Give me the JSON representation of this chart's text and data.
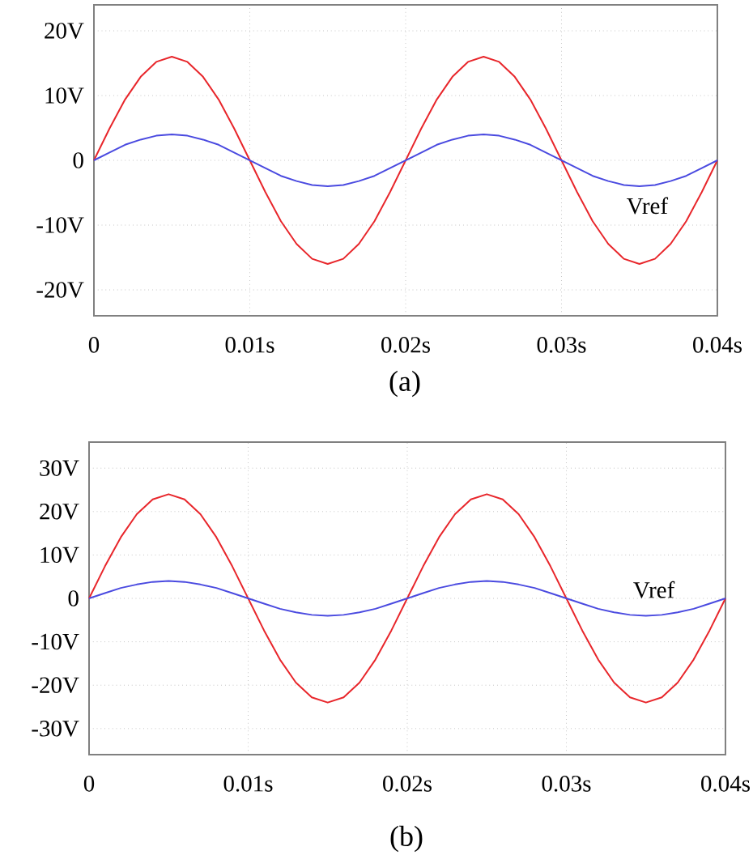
{
  "chart_data": [
    {
      "type": "line",
      "annotations": [
        "(a)"
      ],
      "x": [
        0,
        0.001,
        0.002,
        0.003,
        0.004,
        0.005,
        0.006,
        0.007,
        0.008,
        0.009,
        0.01,
        0.011,
        0.012,
        0.013,
        0.014,
        0.015,
        0.016,
        0.017,
        0.018,
        0.019,
        0.02,
        0.021,
        0.022,
        0.023,
        0.024,
        0.025,
        0.026,
        0.027,
        0.028,
        0.029,
        0.03,
        0.031,
        0.032,
        0.033,
        0.034,
        0.035,
        0.036,
        0.037,
        0.038,
        0.039,
        0.04
      ],
      "series": [
        {
          "color": "#e8262b",
          "values": [
            0,
            4.9,
            9.4,
            12.9,
            15.2,
            16,
            15.2,
            12.9,
            9.4,
            4.9,
            0,
            -4.9,
            -9.4,
            -12.9,
            -15.2,
            -16,
            -15.2,
            -12.9,
            -9.4,
            -4.9,
            0,
            4.9,
            9.4,
            12.9,
            15.2,
            16,
            15.2,
            12.9,
            9.4,
            4.9,
            0,
            -4.9,
            -9.4,
            -12.9,
            -15.2,
            -16,
            -15.2,
            -12.9,
            -9.4,
            -4.9,
            0
          ]
        },
        {
          "name": "Vref",
          "color": "#4a4ae0",
          "values": [
            0,
            1.2,
            2.4,
            3.2,
            3.8,
            4,
            3.8,
            3.2,
            2.4,
            1.2,
            0,
            -1.2,
            -2.4,
            -3.2,
            -3.8,
            -4,
            -3.8,
            -3.2,
            -2.4,
            -1.2,
            0,
            1.2,
            2.4,
            3.2,
            3.8,
            4,
            3.8,
            3.2,
            2.4,
            1.2,
            0,
            -1.2,
            -2.4,
            -3.2,
            -3.8,
            -4,
            -3.8,
            -3.2,
            -2.4,
            -1.2,
            0
          ]
        }
      ],
      "xlim": [
        0,
        0.04
      ],
      "ylim": [
        -24,
        24
      ],
      "xticks": [
        0,
        {
          "value": 0.01,
          "label": "0.01s"
        },
        {
          "value": 0.02,
          "label": "0.02s"
        },
        {
          "value": 0.03,
          "label": "0.03s"
        },
        {
          "value": 0.04,
          "label": "0.04s"
        }
      ],
      "yticks": [
        {
          "value": -20,
          "label": "-20V"
        },
        {
          "value": -10,
          "label": "-10V"
        },
        0,
        {
          "value": 10,
          "label": "10V"
        },
        {
          "value": 20,
          "label": "20V"
        }
      ],
      "grid": true
    },
    {
      "type": "line",
      "annotations": [
        "(b)"
      ],
      "x": [
        0,
        0.001,
        0.002,
        0.003,
        0.004,
        0.005,
        0.006,
        0.007,
        0.008,
        0.009,
        0.01,
        0.011,
        0.012,
        0.013,
        0.014,
        0.015,
        0.016,
        0.017,
        0.018,
        0.019,
        0.02,
        0.021,
        0.022,
        0.023,
        0.024,
        0.025,
        0.026,
        0.027,
        0.028,
        0.029,
        0.03,
        0.031,
        0.032,
        0.033,
        0.034,
        0.035,
        0.036,
        0.037,
        0.038,
        0.039,
        0.04
      ],
      "series": [
        {
          "color": "#e8262b",
          "values": [
            0,
            7.4,
            14.1,
            19.4,
            22.8,
            24,
            22.8,
            19.4,
            14.1,
            7.4,
            0,
            -7.4,
            -14.1,
            -19.4,
            -22.8,
            -24,
            -22.8,
            -19.4,
            -14.1,
            -7.4,
            0,
            7.4,
            14.1,
            19.4,
            22.8,
            24,
            22.8,
            19.4,
            14.1,
            7.4,
            0,
            -7.4,
            -14.1,
            -19.4,
            -22.8,
            -24,
            -22.8,
            -19.4,
            -14.1,
            -7.4,
            0
          ]
        },
        {
          "name": "Vref",
          "color": "#4a4ae0",
          "values": [
            0,
            1.2,
            2.4,
            3.2,
            3.8,
            4,
            3.8,
            3.2,
            2.4,
            1.2,
            0,
            -1.2,
            -2.4,
            -3.2,
            -3.8,
            -4,
            -3.8,
            -3.2,
            -2.4,
            -1.2,
            0,
            1.2,
            2.4,
            3.2,
            3.8,
            4,
            3.8,
            3.2,
            2.4,
            1.2,
            0,
            -1.2,
            -2.4,
            -3.2,
            -3.8,
            -4,
            -3.8,
            -3.2,
            -2.4,
            -1.2,
            0
          ]
        }
      ],
      "xlim": [
        0,
        0.04
      ],
      "ylim": [
        -36,
        36
      ],
      "xticks": [
        0,
        {
          "value": 0.01,
          "label": "0.01s"
        },
        {
          "value": 0.02,
          "label": "0.02s"
        },
        {
          "value": 0.03,
          "label": "0.03s"
        },
        {
          "value": 0.04,
          "label": "0.04s"
        }
      ],
      "yticks": [
        {
          "value": -30,
          "label": "-30V"
        },
        {
          "value": -20,
          "label": "-20V"
        },
        {
          "value": -10,
          "label": "-10V"
        },
        0,
        {
          "value": 10,
          "label": "10V"
        },
        {
          "value": 20,
          "label": "20V"
        },
        {
          "value": 30,
          "label": "30V"
        }
      ],
      "grid": true
    }
  ]
}
